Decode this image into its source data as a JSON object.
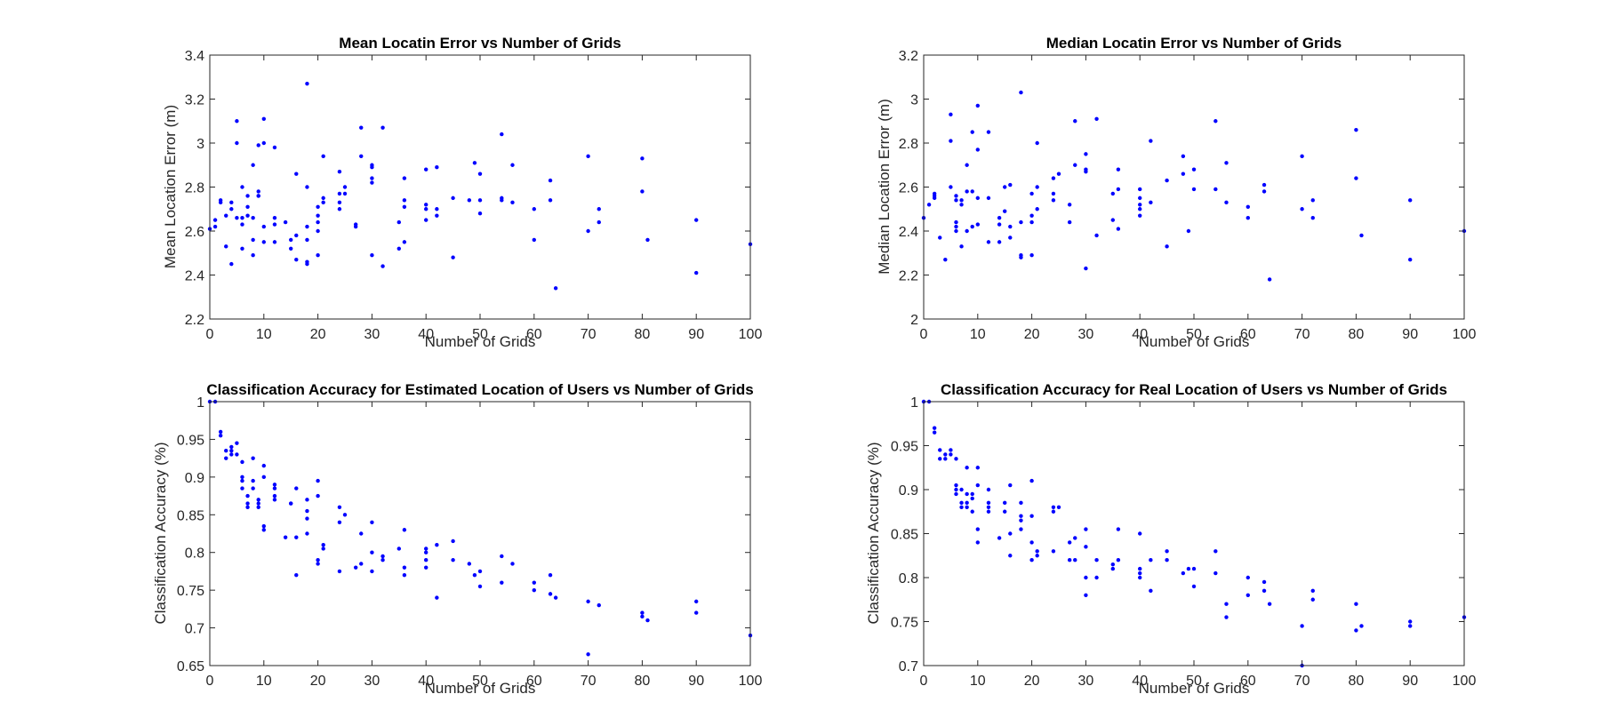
{
  "figure": {
    "colors": {
      "marker": "#0000ff",
      "axis": "#262626",
      "background": "#ffffff"
    },
    "marker": "dot"
  },
  "chart_data": [
    {
      "type": "scatter",
      "title": "Mean Locatin Error vs Number of Grids",
      "xlabel": "Number of Grids",
      "ylabel": "Mean Location Error (m)",
      "xlim": [
        0,
        100
      ],
      "ylim": [
        2.2,
        3.4
      ],
      "xticks": [
        0,
        10,
        20,
        30,
        40,
        50,
        60,
        70,
        80,
        90,
        100
      ],
      "yticks": [
        2.2,
        2.4,
        2.6,
        2.8,
        3,
        3.2,
        3.4
      ],
      "xtick_labels": [
        "0",
        "10",
        "20",
        "30",
        "40",
        "50",
        "60",
        "70",
        "80",
        "90",
        "100"
      ],
      "ytick_labels": [
        "2.2",
        "2.4",
        "2.6",
        "2.8",
        "3",
        "3.2",
        "3.4"
      ],
      "grid": false,
      "x": [
        0,
        1,
        1,
        2,
        2,
        3,
        3,
        4,
        4,
        4,
        5,
        5,
        5,
        6,
        6,
        6,
        6,
        7,
        7,
        7,
        8,
        8,
        8,
        8,
        9,
        9,
        9,
        9,
        10,
        10,
        10,
        10,
        12,
        12,
        12,
        12,
        14,
        15,
        15,
        16,
        16,
        16,
        18,
        18,
        18,
        18,
        18,
        18,
        20,
        20,
        20,
        20,
        20,
        21,
        21,
        21,
        24,
        24,
        24,
        24,
        25,
        25,
        27,
        27,
        28,
        28,
        30,
        30,
        30,
        30,
        30,
        32,
        32,
        35,
        35,
        36,
        36,
        36,
        36,
        40,
        40,
        40,
        40,
        42,
        42,
        42,
        45,
        45,
        48,
        49,
        50,
        50,
        50,
        54,
        54,
        54,
        56,
        56,
        60,
        60,
        63,
        63,
        64,
        70,
        70,
        72,
        72,
        80,
        80,
        81,
        90,
        90,
        100
      ],
      "y": [
        2.61,
        2.62,
        2.65,
        2.73,
        2.74,
        2.53,
        2.67,
        2.45,
        2.7,
        2.73,
        3.1,
        3.0,
        2.66,
        2.52,
        2.63,
        2.66,
        2.8,
        2.67,
        2.71,
        2.76,
        2.49,
        2.56,
        2.66,
        2.9,
        2.76,
        2.78,
        2.76,
        2.99,
        2.55,
        2.62,
        3.0,
        3.11,
        2.55,
        2.63,
        2.66,
        2.98,
        2.64,
        2.52,
        2.56,
        2.86,
        2.47,
        2.58,
        2.45,
        2.46,
        2.56,
        2.62,
        2.8,
        3.27,
        2.49,
        2.6,
        2.64,
        2.67,
        2.71,
        2.73,
        2.75,
        2.94,
        2.7,
        2.73,
        2.77,
        2.87,
        2.77,
        2.8,
        2.62,
        2.63,
        2.94,
        3.07,
        2.49,
        2.82,
        2.84,
        2.89,
        2.9,
        2.44,
        3.07,
        2.52,
        2.64,
        2.55,
        2.71,
        2.74,
        2.84,
        2.65,
        2.72,
        2.7,
        2.88,
        2.7,
        2.89,
        2.67,
        2.48,
        2.75,
        2.74,
        2.91,
        2.68,
        2.74,
        2.86,
        2.75,
        2.74,
        3.04,
        2.73,
        2.9,
        2.56,
        2.7,
        2.74,
        2.83,
        2.34,
        2.6,
        2.94,
        2.64,
        2.7,
        2.78,
        2.93,
        2.56,
        2.41,
        2.65,
        2.54
      ]
    },
    {
      "type": "scatter",
      "title": "Median Locatin Error vs Number of Grids",
      "xlabel": "Number of Grids",
      "ylabel": "Median Location Error (m)",
      "xlim": [
        0,
        100
      ],
      "ylim": [
        2,
        3.2
      ],
      "xticks": [
        0,
        10,
        20,
        30,
        40,
        50,
        60,
        70,
        80,
        90,
        100
      ],
      "yticks": [
        2,
        2.2,
        2.4,
        2.6,
        2.8,
        3,
        3.2
      ],
      "xtick_labels": [
        "0",
        "10",
        "20",
        "30",
        "40",
        "50",
        "60",
        "70",
        "80",
        "90",
        "100"
      ],
      "ytick_labels": [
        "2",
        "2.2",
        "2.4",
        "2.6",
        "2.8",
        "3",
        "3.2"
      ],
      "grid": false,
      "x": [
        0,
        1,
        2,
        2,
        2,
        3,
        4,
        5,
        5,
        5,
        6,
        6,
        6,
        6,
        6,
        7,
        7,
        7,
        8,
        8,
        8,
        9,
        9,
        9,
        10,
        10,
        10,
        10,
        12,
        12,
        12,
        14,
        14,
        14,
        15,
        15,
        16,
        16,
        16,
        18,
        18,
        18,
        18,
        20,
        20,
        20,
        20,
        21,
        21,
        21,
        24,
        24,
        24,
        25,
        27,
        27,
        28,
        28,
        30,
        30,
        30,
        30,
        32,
        32,
        35,
        35,
        36,
        36,
        36,
        40,
        40,
        40,
        40,
        40,
        42,
        42,
        45,
        45,
        48,
        48,
        49,
        50,
        50,
        54,
        54,
        56,
        56,
        60,
        60,
        63,
        63,
        64,
        70,
        70,
        72,
        72,
        80,
        80,
        81,
        90,
        90,
        100
      ],
      "y": [
        2.46,
        2.52,
        2.55,
        2.56,
        2.57,
        2.37,
        2.27,
        2.6,
        2.81,
        2.93,
        2.4,
        2.42,
        2.44,
        2.54,
        2.56,
        2.54,
        2.52,
        2.33,
        2.58,
        2.7,
        2.4,
        2.85,
        2.58,
        2.42,
        2.43,
        2.77,
        2.97,
        2.55,
        2.85,
        2.55,
        2.35,
        2.43,
        2.46,
        2.35,
        2.49,
        2.6,
        2.42,
        2.37,
        2.61,
        2.28,
        2.29,
        3.03,
        2.44,
        2.44,
        2.57,
        2.29,
        2.47,
        2.6,
        2.8,
        2.5,
        2.54,
        2.57,
        2.64,
        2.66,
        2.52,
        2.44,
        2.7,
        2.9,
        2.67,
        2.68,
        2.75,
        2.23,
        2.38,
        2.91,
        2.57,
        2.45,
        2.59,
        2.68,
        2.41,
        2.47,
        2.5,
        2.52,
        2.55,
        2.59,
        2.53,
        2.81,
        2.33,
        2.63,
        2.66,
        2.74,
        2.4,
        2.59,
        2.68,
        2.9,
        2.59,
        2.53,
        2.71,
        2.46,
        2.51,
        2.58,
        2.61,
        2.18,
        2.5,
        2.74,
        2.46,
        2.54,
        2.64,
        2.86,
        2.38,
        2.27,
        2.54,
        2.4
      ]
    },
    {
      "type": "scatter",
      "title": "Classification Accuracy for Estimated Location of Users vs Number of Grids",
      "xlabel": "Number of Grids",
      "ylabel": "Classification Accuracy (%)",
      "xlim": [
        0,
        100
      ],
      "ylim": [
        0.65,
        1
      ],
      "xticks": [
        0,
        10,
        20,
        30,
        40,
        50,
        60,
        70,
        80,
        90,
        100
      ],
      "yticks": [
        0.65,
        0.7,
        0.75,
        0.8,
        0.85,
        0.9,
        0.95,
        1
      ],
      "xtick_labels": [
        "0",
        "10",
        "20",
        "30",
        "40",
        "50",
        "60",
        "70",
        "80",
        "90",
        "100"
      ],
      "ytick_labels": [
        "0.65",
        "0.7",
        "0.75",
        "0.8",
        "0.85",
        "0.9",
        "0.95",
        "1"
      ],
      "grid": false,
      "x": [
        0,
        1,
        2,
        2,
        3,
        3,
        4,
        4,
        4,
        5,
        5,
        6,
        6,
        6,
        6,
        7,
        7,
        7,
        8,
        8,
        8,
        9,
        9,
        9,
        10,
        10,
        10,
        10,
        12,
        12,
        12,
        12,
        14,
        15,
        15,
        16,
        16,
        16,
        18,
        18,
        18,
        18,
        20,
        20,
        20,
        20,
        21,
        21,
        24,
        24,
        24,
        25,
        27,
        28,
        28,
        30,
        30,
        30,
        32,
        32,
        35,
        36,
        36,
        36,
        40,
        40,
        40,
        40,
        42,
        42,
        45,
        45,
        48,
        49,
        50,
        50,
        54,
        54,
        56,
        60,
        60,
        63,
        63,
        64,
        70,
        70,
        72,
        80,
        80,
        81,
        90,
        90,
        100
      ],
      "y": [
        1.0,
        1.0,
        0.96,
        0.955,
        0.935,
        0.925,
        0.93,
        0.94,
        0.935,
        0.93,
        0.945,
        0.9,
        0.895,
        0.885,
        0.92,
        0.875,
        0.865,
        0.86,
        0.895,
        0.925,
        0.885,
        0.87,
        0.86,
        0.865,
        0.835,
        0.83,
        0.9,
        0.915,
        0.875,
        0.885,
        0.87,
        0.89,
        0.82,
        0.865,
        0.865,
        0.77,
        0.82,
        0.885,
        0.825,
        0.855,
        0.87,
        0.845,
        0.785,
        0.79,
        0.875,
        0.895,
        0.81,
        0.805,
        0.775,
        0.86,
        0.84,
        0.85,
        0.78,
        0.785,
        0.825,
        0.775,
        0.8,
        0.84,
        0.795,
        0.79,
        0.805,
        0.77,
        0.78,
        0.83,
        0.78,
        0.79,
        0.8,
        0.805,
        0.74,
        0.81,
        0.815,
        0.79,
        0.785,
        0.77,
        0.775,
        0.755,
        0.795,
        0.76,
        0.785,
        0.75,
        0.76,
        0.745,
        0.77,
        0.74,
        0.735,
        0.665,
        0.73,
        0.72,
        0.715,
        0.71,
        0.72,
        0.735,
        0.69
      ]
    },
    {
      "type": "scatter",
      "title": "Classification Accuracy for Real Location of Users vs Number of Grids",
      "xlabel": "Number of Grids",
      "ylabel": "Classification Accuracy (%)",
      "xlim": [
        0,
        100
      ],
      "ylim": [
        0.7,
        1
      ],
      "xticks": [
        0,
        10,
        20,
        30,
        40,
        50,
        60,
        70,
        80,
        90,
        100
      ],
      "yticks": [
        0.7,
        0.75,
        0.8,
        0.85,
        0.9,
        0.95,
        1
      ],
      "xtick_labels": [
        "0",
        "10",
        "20",
        "30",
        "40",
        "50",
        "60",
        "70",
        "80",
        "90",
        "100"
      ],
      "ytick_labels": [
        "0.7",
        "0.75",
        "0.8",
        "0.85",
        "0.9",
        "0.95",
        "1"
      ],
      "grid": false,
      "x": [
        0,
        1,
        2,
        2,
        3,
        3,
        4,
        4,
        5,
        5,
        6,
        6,
        6,
        6,
        7,
        7,
        7,
        8,
        8,
        8,
        8,
        9,
        9,
        9,
        10,
        10,
        10,
        10,
        12,
        12,
        12,
        12,
        14,
        15,
        15,
        16,
        16,
        16,
        18,
        18,
        18,
        18,
        20,
        20,
        20,
        20,
        21,
        21,
        24,
        24,
        24,
        25,
        27,
        27,
        28,
        28,
        30,
        30,
        30,
        30,
        32,
        32,
        35,
        35,
        36,
        36,
        40,
        40,
        40,
        40,
        42,
        42,
        45,
        45,
        48,
        49,
        50,
        50,
        54,
        54,
        56,
        56,
        60,
        60,
        63,
        63,
        64,
        70,
        70,
        72,
        72,
        80,
        80,
        81,
        90,
        90,
        100
      ],
      "y": [
        1.0,
        1.0,
        0.965,
        0.97,
        0.935,
        0.945,
        0.94,
        0.935,
        0.945,
        0.94,
        0.9,
        0.905,
        0.895,
        0.935,
        0.885,
        0.88,
        0.9,
        0.88,
        0.885,
        0.895,
        0.925,
        0.875,
        0.89,
        0.895,
        0.84,
        0.855,
        0.905,
        0.925,
        0.875,
        0.88,
        0.885,
        0.9,
        0.845,
        0.875,
        0.885,
        0.825,
        0.85,
        0.905,
        0.865,
        0.87,
        0.885,
        0.855,
        0.82,
        0.84,
        0.87,
        0.91,
        0.83,
        0.825,
        0.83,
        0.875,
        0.88,
        0.88,
        0.82,
        0.84,
        0.82,
        0.845,
        0.78,
        0.8,
        0.835,
        0.855,
        0.82,
        0.8,
        0.815,
        0.81,
        0.82,
        0.855,
        0.8,
        0.805,
        0.81,
        0.85,
        0.785,
        0.82,
        0.82,
        0.83,
        0.805,
        0.81,
        0.79,
        0.81,
        0.805,
        0.83,
        0.77,
        0.755,
        0.78,
        0.8,
        0.785,
        0.795,
        0.77,
        0.7,
        0.745,
        0.775,
        0.785,
        0.74,
        0.77,
        0.745,
        0.745,
        0.75,
        0.755
      ]
    }
  ]
}
